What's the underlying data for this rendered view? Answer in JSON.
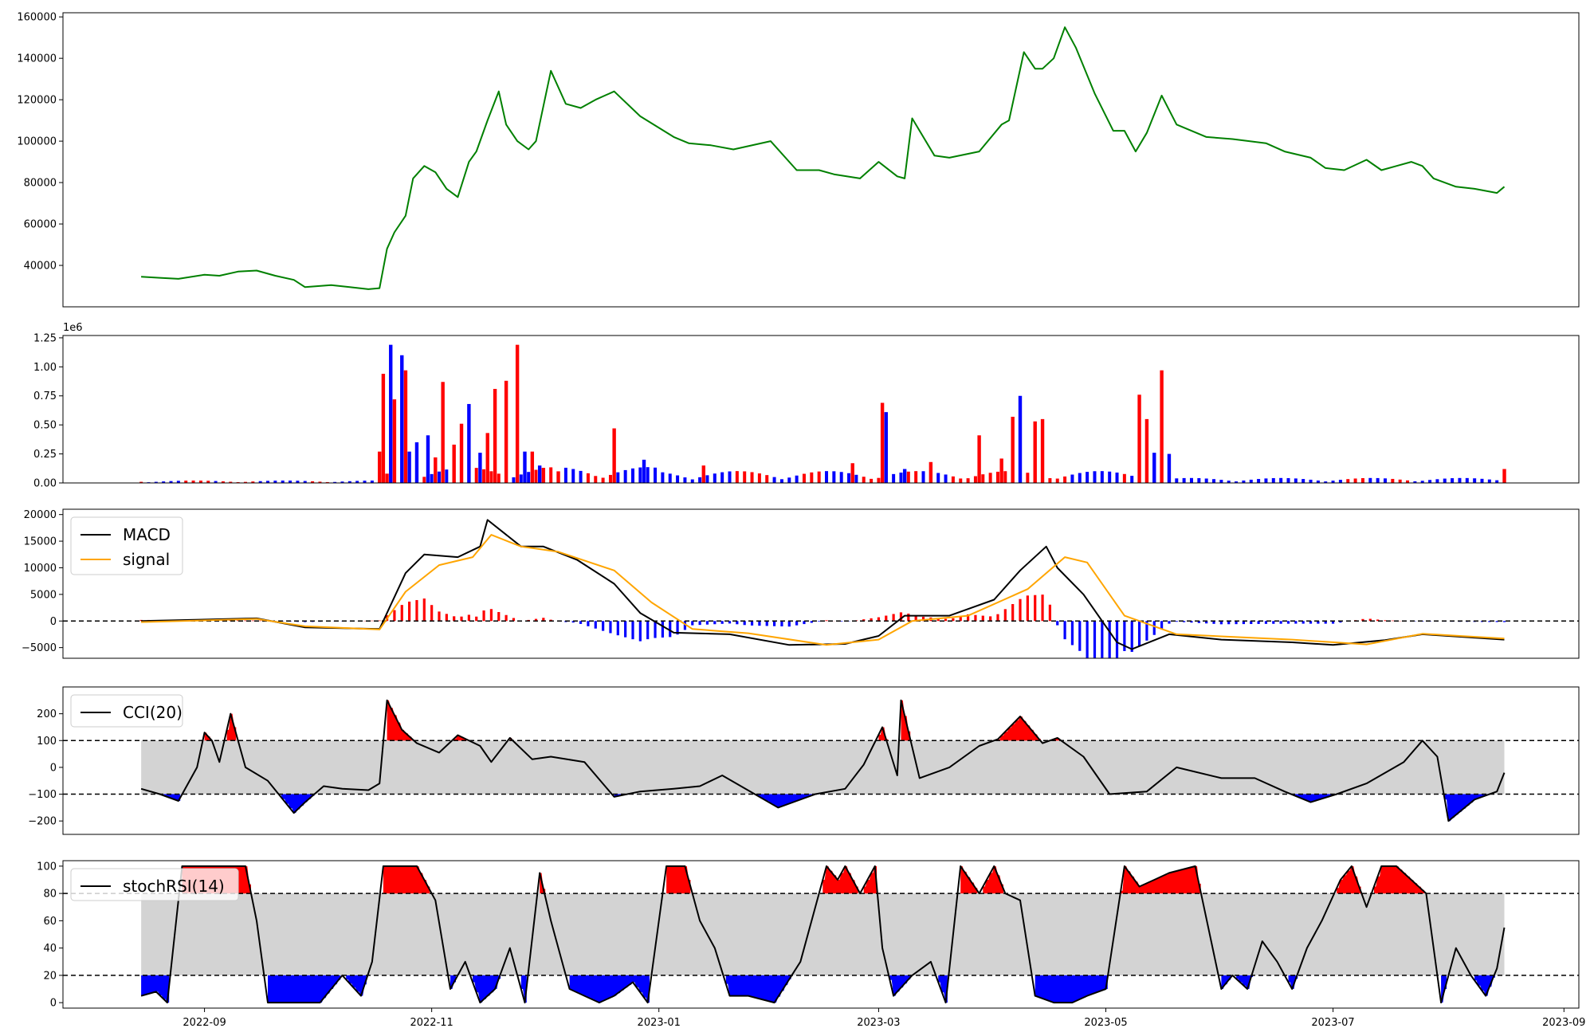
{
  "chart_data": [
    {
      "type": "line",
      "panel": "price",
      "color": "#008000",
      "ylim": [
        20000,
        162000
      ],
      "yticks": [
        40000,
        60000,
        80000,
        100000,
        120000,
        140000,
        160000
      ],
      "ytick_labels": [
        "40000",
        "60000",
        "80000",
        "100000",
        "120000",
        "140000",
        "160000"
      ],
      "series": [
        {
          "x": [
            "2022-08-15",
            "2022-08-20",
            "2022-08-25",
            "2022-09-01",
            "2022-09-05",
            "2022-09-10",
            "2022-09-15",
            "2022-09-20",
            "2022-09-25",
            "2022-09-28",
            "2022-10-05",
            "2022-10-10",
            "2022-10-15",
            "2022-10-18",
            "2022-10-20",
            "2022-10-22",
            "2022-10-25",
            "2022-10-27",
            "2022-10-30",
            "2022-11-02",
            "2022-11-05",
            "2022-11-08",
            "2022-11-11",
            "2022-11-13",
            "2022-11-16",
            "2022-11-19",
            "2022-11-21",
            "2022-11-24",
            "2022-11-27",
            "2022-11-29",
            "2022-12-03",
            "2022-12-07",
            "2022-12-11",
            "2022-12-15",
            "2022-12-20",
            "2022-12-27",
            "2023-01-05",
            "2023-01-09",
            "2023-01-15",
            "2023-01-21",
            "2023-01-31",
            "2023-02-07",
            "2023-02-13",
            "2023-02-17",
            "2023-02-24",
            "2023-03-01",
            "2023-03-06",
            "2023-03-08",
            "2023-03-10",
            "2023-03-16",
            "2023-03-20",
            "2023-03-28",
            "2023-04-03",
            "2023-04-05",
            "2023-04-09",
            "2023-04-12",
            "2023-04-14",
            "2023-04-17",
            "2023-04-20",
            "2023-04-23",
            "2023-04-28",
            "2023-05-03",
            "2023-05-06",
            "2023-05-09",
            "2023-05-12",
            "2023-05-16",
            "2023-05-20",
            "2023-05-28",
            "2023-06-04",
            "2023-06-13",
            "2023-06-18",
            "2023-06-25",
            "2023-06-29",
            "2023-07-04",
            "2023-07-10",
            "2023-07-14",
            "2023-07-18",
            "2023-07-22",
            "2023-07-25",
            "2023-07-28",
            "2023-08-03",
            "2023-08-08",
            "2023-08-14",
            "2023-08-16"
          ],
          "values": [
            34500,
            34000,
            33500,
            35500,
            35000,
            37000,
            37500,
            35000,
            33000,
            29500,
            30500,
            29500,
            28500,
            29000,
            48000,
            56000,
            64000,
            82000,
            88000,
            85000,
            77000,
            73000,
            90000,
            95000,
            110000,
            124000,
            108000,
            100000,
            96000,
            100000,
            134000,
            118000,
            116000,
            120000,
            124000,
            112000,
            102000,
            99000,
            98000,
            96000,
            100000,
            86000,
            86000,
            84000,
            82000,
            90000,
            83000,
            82000,
            111000,
            93000,
            92000,
            95000,
            108000,
            110000,
            143000,
            135000,
            135000,
            140000,
            155000,
            145000,
            123000,
            105000,
            105000,
            95000,
            104000,
            122000,
            108000,
            102000,
            101000,
            99000,
            95000,
            92000,
            87000,
            86000,
            91000,
            86000,
            88000,
            90000,
            88000,
            82000,
            78000,
            77000,
            75000,
            78000
          ]
        }
      ]
    },
    {
      "type": "bar",
      "panel": "volume",
      "offset_label": "1e6",
      "ylim": [
        0,
        1.27
      ],
      "yticks": [
        0,
        0.25,
        0.5,
        0.75,
        1.0,
        1.25
      ],
      "ytick_labels": [
        "0.00",
        "0.25",
        "0.50",
        "0.75",
        "1.00",
        "1.25"
      ],
      "colors": {
        "up": "#ff0000",
        "down": "#0000ff"
      },
      "x": [
        "2022-10-18",
        "2022-10-19",
        "2022-10-20",
        "2022-10-21",
        "2022-10-22",
        "2022-10-24",
        "2022-10-25",
        "2022-10-26",
        "2022-10-28",
        "2022-10-31",
        "2022-11-02",
        "2022-11-04",
        "2022-11-07",
        "2022-11-09",
        "2022-11-11",
        "2022-11-14",
        "2022-11-16",
        "2022-11-18",
        "2022-11-21",
        "2022-11-24",
        "2022-11-26",
        "2022-11-28",
        "2022-11-30",
        "2022-12-01",
        "2022-12-05",
        "2022-12-20",
        "2022-12-28",
        "2023-01-13",
        "2023-02-22",
        "2023-03-02",
        "2023-03-03",
        "2023-03-08",
        "2023-03-15",
        "2023-03-28",
        "2023-04-03",
        "2023-04-06",
        "2023-04-08",
        "2023-04-12",
        "2023-04-14",
        "2023-05-10",
        "2023-05-12",
        "2023-05-14",
        "2023-05-16",
        "2023-05-18",
        "2023-08-16"
      ],
      "values": [
        0.27,
        0.94,
        0.08,
        1.19,
        0.72,
        1.1,
        0.97,
        0.27,
        0.35,
        0.41,
        0.22,
        0.87,
        0.33,
        0.51,
        0.68,
        0.26,
        0.43,
        0.81,
        0.88,
        1.19,
        0.27,
        0.27,
        0.15,
        0.13,
        0.1,
        0.47,
        0.2,
        0.15,
        0.17,
        0.69,
        0.61,
        0.12,
        0.18,
        0.41,
        0.21,
        0.57,
        0.75,
        0.53,
        0.55,
        0.76,
        0.55,
        0.26,
        0.97,
        0.25,
        0.12
      ],
      "directions": [
        "up",
        "up",
        "up",
        "down",
        "up",
        "down",
        "up",
        "down",
        "down",
        "down",
        "up",
        "up",
        "up",
        "up",
        "down",
        "down",
        "up",
        "up",
        "up",
        "up",
        "down",
        "up",
        "down",
        "up",
        "up",
        "up",
        "down",
        "up",
        "up",
        "up",
        "down",
        "down",
        "up",
        "up",
        "up",
        "up",
        "down",
        "up",
        "up",
        "up",
        "up",
        "down",
        "up",
        "down",
        "up"
      ]
    },
    {
      "type": "line",
      "panel": "macd",
      "ylim": [
        -7000,
        21000
      ],
      "yticks": [
        -5000,
        0,
        5000,
        10000,
        15000,
        20000
      ],
      "ytick_labels": [
        "−5000",
        "0",
        "5000",
        "10000",
        "15000",
        "20000"
      ],
      "legend": [
        "MACD",
        "signal"
      ],
      "series": [
        {
          "name": "MACD",
          "color": "#000000",
          "x": [
            "2022-08-15",
            "2022-09-15",
            "2022-09-28",
            "2022-10-18",
            "2022-10-25",
            "2022-10-30",
            "2022-11-08",
            "2022-11-14",
            "2022-11-16",
            "2022-11-25",
            "2022-12-01",
            "2022-12-10",
            "2022-12-20",
            "2022-12-27",
            "2023-01-05",
            "2023-01-20",
            "2023-02-05",
            "2023-02-20",
            "2023-03-01",
            "2023-03-08",
            "2023-03-20",
            "2023-04-01",
            "2023-04-08",
            "2023-04-15",
            "2023-04-18",
            "2023-04-25",
            "2023-05-04",
            "2023-05-08",
            "2023-05-18",
            "2023-06-01",
            "2023-06-20",
            "2023-07-01",
            "2023-07-15",
            "2023-07-25",
            "2023-08-16"
          ],
          "values": [
            0,
            500,
            -1200,
            -1500,
            9000,
            12500,
            12000,
            14000,
            19000,
            14000,
            14000,
            11500,
            7000,
            1500,
            -2200,
            -2500,
            -4500,
            -4300,
            -2800,
            1000,
            1000,
            4000,
            9500,
            14000,
            10000,
            5000,
            -4000,
            -5300,
            -2500,
            -3500,
            -4000,
            -4500,
            -3600,
            -2500,
            -3500
          ]
        },
        {
          "name": "signal",
          "color": "#ffa500",
          "x": [
            "2022-08-15",
            "2022-09-15",
            "2022-09-28",
            "2022-10-18",
            "2022-10-25",
            "2022-11-03",
            "2022-11-12",
            "2022-11-17",
            "2022-11-25",
            "2022-12-05",
            "2022-12-20",
            "2022-12-30",
            "2023-01-10",
            "2023-01-25",
            "2023-02-15",
            "2023-03-01",
            "2023-03-10",
            "2023-03-25",
            "2023-04-10",
            "2023-04-20",
            "2023-04-26",
            "2023-05-06",
            "2023-05-20",
            "2023-06-20",
            "2023-07-10",
            "2023-07-25",
            "2023-08-16"
          ],
          "values": [
            -200,
            400,
            -1000,
            -1600,
            5500,
            10500,
            12000,
            16200,
            14000,
            13000,
            9500,
            3500,
            -1500,
            -2300,
            -4500,
            -3500,
            0,
            1000,
            6000,
            12000,
            11000,
            1000,
            -2500,
            -3500,
            -4400,
            -2400,
            -3300
          ]
        }
      ],
      "hist_colors": {
        "positive": "#ff0000",
        "negative": "#0000ff"
      },
      "zero_line": 0
    },
    {
      "type": "line",
      "panel": "cci",
      "ylim": [
        -250,
        300
      ],
      "yticks": [
        -200,
        -100,
        0,
        100,
        200
      ],
      "ytick_labels": [
        "−200",
        "−100",
        "0",
        "100",
        "200"
      ],
      "legend": [
        "CCI(20)"
      ],
      "band": [
        -100,
        100
      ],
      "band_color": "#d3d3d3",
      "over_color": "#ff0000",
      "under_color": "#0000ff",
      "series": [
        {
          "name": "CCI(20)",
          "color": "#000000",
          "x": [
            "2022-08-15",
            "2022-08-20",
            "2022-08-25",
            "2022-08-30",
            "2022-09-01",
            "2022-09-03",
            "2022-09-05",
            "2022-09-08",
            "2022-09-12",
            "2022-09-18",
            "2022-09-25",
            "2022-09-28",
            "2022-10-03",
            "2022-10-08",
            "2022-10-15",
            "2022-10-18",
            "2022-10-20",
            "2022-10-24",
            "2022-10-28",
            "2022-11-03",
            "2022-11-08",
            "2022-11-14",
            "2022-11-17",
            "2022-11-22",
            "2022-11-28",
            "2022-12-03",
            "2022-12-12",
            "2022-12-20",
            "2022-12-27",
            "2023-01-05",
            "2023-01-12",
            "2023-01-18",
            "2023-02-02",
            "2023-02-12",
            "2023-02-20",
            "2023-02-25",
            "2023-03-02",
            "2023-03-06",
            "2023-03-07",
            "2023-03-12",
            "2023-03-20",
            "2023-03-28",
            "2023-04-02",
            "2023-04-08",
            "2023-04-14",
            "2023-04-18",
            "2023-04-25",
            "2023-05-02",
            "2023-05-12",
            "2023-05-20",
            "2023-06-01",
            "2023-06-10",
            "2023-06-18",
            "2023-06-25",
            "2023-07-02",
            "2023-07-10",
            "2023-07-20",
            "2023-07-25",
            "2023-07-29",
            "2023-08-01",
            "2023-08-08",
            "2023-08-14",
            "2023-08-16"
          ],
          "values": [
            -80,
            -100,
            -125,
            0,
            130,
            100,
            20,
            200,
            0,
            -50,
            -170,
            -130,
            -70,
            -80,
            -85,
            -60,
            250,
            140,
            90,
            55,
            120,
            80,
            20,
            110,
            30,
            40,
            20,
            -110,
            -90,
            -80,
            -70,
            -30,
            -150,
            -100,
            -80,
            10,
            150,
            -30,
            250,
            -40,
            0,
            80,
            105,
            190,
            90,
            110,
            40,
            -100,
            -90,
            0,
            -40,
            -40,
            -90,
            -130,
            -100,
            -60,
            20,
            100,
            40,
            -200,
            -120,
            -90,
            -20
          ]
        }
      ]
    },
    {
      "type": "line",
      "panel": "stochrsi",
      "ylim": [
        -4,
        104
      ],
      "yticks": [
        0,
        20,
        40,
        60,
        80,
        100
      ],
      "ytick_labels": [
        "0",
        "20",
        "40",
        "60",
        "80",
        "100"
      ],
      "legend": [
        "stochRSI(14)"
      ],
      "band": [
        20,
        80
      ],
      "band_color": "#d3d3d3",
      "over_color": "#ff0000",
      "under_color": "#0000ff",
      "series": [
        {
          "name": "stochRSI(14)",
          "color": "#000000",
          "x": [
            "2022-08-15",
            "2022-08-19",
            "2022-08-22",
            "2022-08-26",
            "2022-08-31",
            "2022-09-07",
            "2022-09-12",
            "2022-09-15",
            "2022-09-18",
            "2022-09-25",
            "2022-10-02",
            "2022-10-08",
            "2022-10-13",
            "2022-10-16",
            "2022-10-19",
            "2022-10-22",
            "2022-10-28",
            "2022-11-02",
            "2022-11-06",
            "2022-11-10",
            "2022-11-14",
            "2022-11-18",
            "2022-11-22",
            "2022-11-26",
            "2022-11-30",
            "2022-12-03",
            "2022-12-08",
            "2022-12-12",
            "2022-12-16",
            "2022-12-20",
            "2022-12-25",
            "2022-12-29",
            "2023-01-03",
            "2023-01-08",
            "2023-01-12",
            "2023-01-16",
            "2023-01-20",
            "2023-01-25",
            "2023-02-01",
            "2023-02-08",
            "2023-02-15",
            "2023-02-18",
            "2023-02-20",
            "2023-02-24",
            "2023-02-28",
            "2023-03-02",
            "2023-03-05",
            "2023-03-10",
            "2023-03-15",
            "2023-03-19",
            "2023-03-23",
            "2023-03-28",
            "2023-04-01",
            "2023-04-04",
            "2023-04-08",
            "2023-04-12",
            "2023-04-17",
            "2023-04-22",
            "2023-04-26",
            "2023-05-01",
            "2023-05-06",
            "2023-05-10",
            "2023-05-14",
            "2023-05-18",
            "2023-05-25",
            "2023-06-01",
            "2023-06-04",
            "2023-06-08",
            "2023-06-12",
            "2023-06-16",
            "2023-06-20",
            "2023-06-24",
            "2023-06-28",
            "2023-07-03",
            "2023-07-06",
            "2023-07-10",
            "2023-07-14",
            "2023-07-18",
            "2023-07-22",
            "2023-07-26",
            "2023-07-30",
            "2023-08-03",
            "2023-08-07",
            "2023-08-11",
            "2023-08-14",
            "2023-08-16"
          ],
          "values": [
            5,
            8,
            0,
            100,
            100,
            100,
            100,
            60,
            0,
            0,
            0,
            20,
            5,
            30,
            100,
            100,
            100,
            75,
            10,
            30,
            0,
            10,
            40,
            0,
            95,
            60,
            10,
            5,
            0,
            5,
            15,
            0,
            100,
            100,
            60,
            40,
            5,
            5,
            0,
            30,
            100,
            90,
            100,
            80,
            100,
            40,
            5,
            20,
            30,
            0,
            100,
            80,
            100,
            80,
            75,
            5,
            0,
            0,
            5,
            10,
            100,
            85,
            90,
            95,
            100,
            10,
            20,
            10,
            45,
            30,
            10,
            40,
            60,
            90,
            100,
            70,
            100,
            100,
            90,
            80,
            0,
            40,
            20,
            5,
            25,
            55
          ]
        }
      ]
    }
  ],
  "x_axis": {
    "tick_dates": [
      "2022-09-01",
      "2022-11-01",
      "2023-01-01",
      "2023-03-01",
      "2023-05-01",
      "2023-07-01",
      "2023-09-01"
    ],
    "tick_labels": [
      "2022-09",
      "2022-11",
      "2023-01",
      "2023-03",
      "2023-05",
      "2023-07",
      "2023-09"
    ],
    "range": [
      "2022-07-25",
      "2023-09-05"
    ]
  }
}
